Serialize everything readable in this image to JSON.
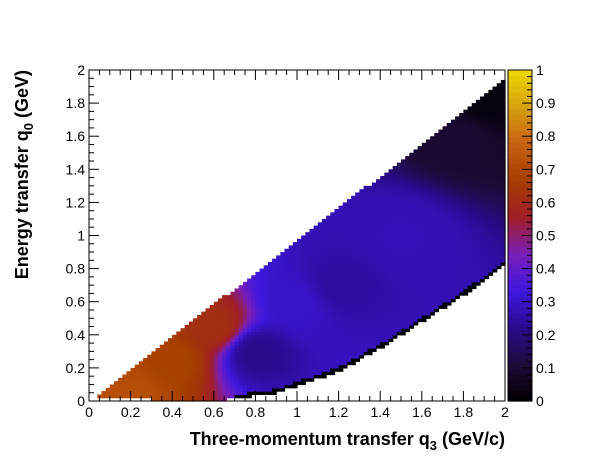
{
  "chart_data": {
    "type": "heatmap",
    "title": "",
    "xlabel": {
      "main": "Three-momentum transfer q",
      "sub": "3",
      "unit": " (GeV/c)"
    },
    "ylabel": {
      "main": "Energy transfer q",
      "sub": "0",
      "unit": " (GeV)"
    },
    "xlim": [
      0,
      2
    ],
    "ylim": [
      0,
      2
    ],
    "zlim": [
      0,
      1
    ],
    "x_ticks": [
      "0",
      "0.2",
      "0.4",
      "0.6",
      "0.8",
      "1",
      "1.2",
      "1.4",
      "1.6",
      "1.8",
      "2"
    ],
    "y_ticks": [
      "0",
      "0.2",
      "0.4",
      "0.6",
      "0.8",
      "1",
      "1.2",
      "1.4",
      "1.6",
      "1.8",
      "2"
    ],
    "z_ticks": [
      "0",
      "0.1",
      "0.2",
      "0.3",
      "0.4",
      "0.5",
      "0.6",
      "0.7",
      "0.8",
      "0.9",
      "1"
    ],
    "bins": {
      "nx": 100,
      "ny": 100
    },
    "region": {
      "upper_boundary": "q0 = q3 (approximately)",
      "lower_boundary_points": [
        [
          0.0,
          0.02
        ],
        [
          0.6,
          0.0
        ],
        [
          0.9,
          0.05
        ],
        [
          1.2,
          0.18
        ],
        [
          1.4,
          0.32
        ],
        [
          1.6,
          0.48
        ],
        [
          1.8,
          0.64
        ],
        [
          2.0,
          0.82
        ]
      ]
    },
    "z_profile_samples": [
      {
        "x": 0.2,
        "y": 0.05,
        "z": 0.72
      },
      {
        "x": 0.4,
        "y": 0.25,
        "z": 0.68
      },
      {
        "x": 0.6,
        "y": 0.45,
        "z": 0.62
      },
      {
        "x": 0.8,
        "y": 0.3,
        "z": 0.22
      },
      {
        "x": 1.0,
        "y": 0.6,
        "z": 0.3
      },
      {
        "x": 1.2,
        "y": 0.7,
        "z": 0.25
      },
      {
        "x": 1.5,
        "y": 1.0,
        "z": 0.28
      },
      {
        "x": 1.8,
        "y": 1.6,
        "z": 0.1
      },
      {
        "x": 1.9,
        "y": 1.8,
        "z": 0.03
      }
    ],
    "palette": [
      "#000000",
      "#1e0a38",
      "#2b0a8c",
      "#3d18e0",
      "#7a1eb8",
      "#a01e28",
      "#a53d00",
      "#c86010",
      "#d6a010",
      "#ecd800"
    ],
    "grid": false,
    "legend": "colorbar-right"
  }
}
